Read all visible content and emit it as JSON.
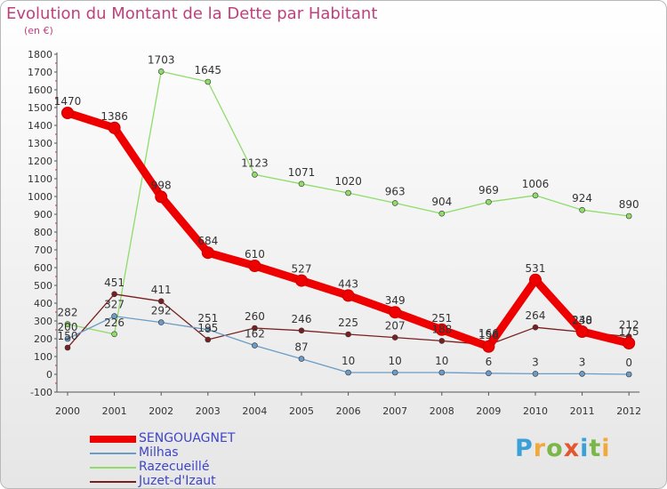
{
  "title": "Evolution du Montant de la Dette par Habitant",
  "unit": "(en €)",
  "brand": [
    "P",
    "r",
    "o",
    "x",
    "i",
    "t",
    "i"
  ],
  "brand_colors": [
    "#3b9fd8",
    "#f2a93b",
    "#7ab648",
    "#e4572e",
    "#3b9fd8",
    "#7ab648",
    "#f2a93b"
  ],
  "chart_data": {
    "type": "line",
    "title": "Evolution du Montant de la Dette par Habitant",
    "ylabel": "(en €)",
    "x": [
      "2000",
      "2001",
      "2002",
      "2003",
      "2004",
      "2005",
      "2006",
      "2007",
      "2008",
      "2009",
      "2010",
      "2011",
      "2012"
    ],
    "ylim": [
      -100,
      1800
    ],
    "yticks": [
      -100,
      0,
      100,
      200,
      300,
      400,
      500,
      600,
      700,
      800,
      900,
      1000,
      1100,
      1200,
      1300,
      1400,
      1500,
      1600,
      1700,
      1800
    ],
    "grid": false,
    "legend_position": "bottom-left",
    "series": [
      {
        "name": "SENGOUAGNET",
        "color": "#ee0000",
        "values": [
          1470,
          1386,
          998,
          684,
          610,
          527,
          443,
          349,
          251,
          156,
          531,
          240,
          175
        ],
        "labels": [
          "1470",
          "1386",
          "998",
          "684",
          "610",
          "527",
          "443",
          "349",
          "251",
          "156",
          "531",
          "240",
          "175"
        ]
      },
      {
        "name": "Milhas",
        "color": "#6a9cc8",
        "values": [
          200,
          327,
          292,
          251,
          162,
          87,
          10,
          10,
          10,
          6,
          3,
          3,
          0
        ],
        "labels": [
          "200",
          "327",
          "292",
          "251",
          "162",
          "87",
          "10",
          "10",
          "10",
          "6",
          "3",
          "3",
          "0"
        ]
      },
      {
        "name": "Razecueillé",
        "color": "#8fdc6a",
        "values": [
          282,
          226,
          1703,
          1645,
          1123,
          1071,
          1020,
          963,
          904,
          969,
          1006,
          924,
          890
        ],
        "labels": [
          "282",
          "226",
          "1703",
          "1645",
          "1123",
          "1071",
          "1020",
          "963",
          "904",
          "969",
          "1006",
          "924",
          "890"
        ]
      },
      {
        "name": "Juzet-d'Izaut",
        "color": "#7a1f1f",
        "values": [
          150,
          451,
          411,
          195,
          260,
          246,
          225,
          207,
          188,
          166,
          264,
          238,
          212
        ],
        "labels": [
          "150",
          "451",
          "411",
          "195",
          "260",
          "246",
          "225",
          "207",
          "188",
          "166",
          "264",
          "238",
          "212"
        ]
      }
    ]
  }
}
